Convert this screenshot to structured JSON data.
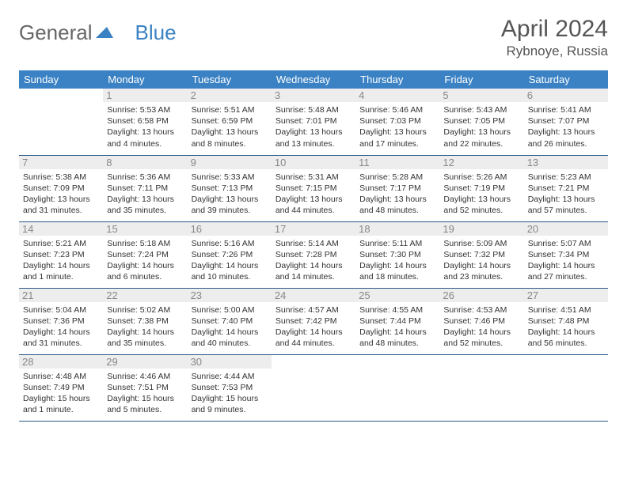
{
  "logo": {
    "general": "General",
    "blue": "Blue"
  },
  "header": {
    "title": "April 2024",
    "location": "Rybnoye, Russia"
  },
  "colors": {
    "header_bg": "#3b82c4",
    "header_text": "#ffffff",
    "border": "#2a5a8a",
    "daynum_bg": "#ededed",
    "daynum_text": "#888888",
    "body_text": "#333333"
  },
  "weekdays": [
    "Sunday",
    "Monday",
    "Tuesday",
    "Wednesday",
    "Thursday",
    "Friday",
    "Saturday"
  ],
  "weeks": [
    [
      {
        "n": "",
        "t": ""
      },
      {
        "n": "1",
        "t": "Sunrise: 5:53 AM\nSunset: 6:58 PM\nDaylight: 13 hours and 4 minutes."
      },
      {
        "n": "2",
        "t": "Sunrise: 5:51 AM\nSunset: 6:59 PM\nDaylight: 13 hours and 8 minutes."
      },
      {
        "n": "3",
        "t": "Sunrise: 5:48 AM\nSunset: 7:01 PM\nDaylight: 13 hours and 13 minutes."
      },
      {
        "n": "4",
        "t": "Sunrise: 5:46 AM\nSunset: 7:03 PM\nDaylight: 13 hours and 17 minutes."
      },
      {
        "n": "5",
        "t": "Sunrise: 5:43 AM\nSunset: 7:05 PM\nDaylight: 13 hours and 22 minutes."
      },
      {
        "n": "6",
        "t": "Sunrise: 5:41 AM\nSunset: 7:07 PM\nDaylight: 13 hours and 26 minutes."
      }
    ],
    [
      {
        "n": "7",
        "t": "Sunrise: 5:38 AM\nSunset: 7:09 PM\nDaylight: 13 hours and 31 minutes."
      },
      {
        "n": "8",
        "t": "Sunrise: 5:36 AM\nSunset: 7:11 PM\nDaylight: 13 hours and 35 minutes."
      },
      {
        "n": "9",
        "t": "Sunrise: 5:33 AM\nSunset: 7:13 PM\nDaylight: 13 hours and 39 minutes."
      },
      {
        "n": "10",
        "t": "Sunrise: 5:31 AM\nSunset: 7:15 PM\nDaylight: 13 hours and 44 minutes."
      },
      {
        "n": "11",
        "t": "Sunrise: 5:28 AM\nSunset: 7:17 PM\nDaylight: 13 hours and 48 minutes."
      },
      {
        "n": "12",
        "t": "Sunrise: 5:26 AM\nSunset: 7:19 PM\nDaylight: 13 hours and 52 minutes."
      },
      {
        "n": "13",
        "t": "Sunrise: 5:23 AM\nSunset: 7:21 PM\nDaylight: 13 hours and 57 minutes."
      }
    ],
    [
      {
        "n": "14",
        "t": "Sunrise: 5:21 AM\nSunset: 7:23 PM\nDaylight: 14 hours and 1 minute."
      },
      {
        "n": "15",
        "t": "Sunrise: 5:18 AM\nSunset: 7:24 PM\nDaylight: 14 hours and 6 minutes."
      },
      {
        "n": "16",
        "t": "Sunrise: 5:16 AM\nSunset: 7:26 PM\nDaylight: 14 hours and 10 minutes."
      },
      {
        "n": "17",
        "t": "Sunrise: 5:14 AM\nSunset: 7:28 PM\nDaylight: 14 hours and 14 minutes."
      },
      {
        "n": "18",
        "t": "Sunrise: 5:11 AM\nSunset: 7:30 PM\nDaylight: 14 hours and 18 minutes."
      },
      {
        "n": "19",
        "t": "Sunrise: 5:09 AM\nSunset: 7:32 PM\nDaylight: 14 hours and 23 minutes."
      },
      {
        "n": "20",
        "t": "Sunrise: 5:07 AM\nSunset: 7:34 PM\nDaylight: 14 hours and 27 minutes."
      }
    ],
    [
      {
        "n": "21",
        "t": "Sunrise: 5:04 AM\nSunset: 7:36 PM\nDaylight: 14 hours and 31 minutes."
      },
      {
        "n": "22",
        "t": "Sunrise: 5:02 AM\nSunset: 7:38 PM\nDaylight: 14 hours and 35 minutes."
      },
      {
        "n": "23",
        "t": "Sunrise: 5:00 AM\nSunset: 7:40 PM\nDaylight: 14 hours and 40 minutes."
      },
      {
        "n": "24",
        "t": "Sunrise: 4:57 AM\nSunset: 7:42 PM\nDaylight: 14 hours and 44 minutes."
      },
      {
        "n": "25",
        "t": "Sunrise: 4:55 AM\nSunset: 7:44 PM\nDaylight: 14 hours and 48 minutes."
      },
      {
        "n": "26",
        "t": "Sunrise: 4:53 AM\nSunset: 7:46 PM\nDaylight: 14 hours and 52 minutes."
      },
      {
        "n": "27",
        "t": "Sunrise: 4:51 AM\nSunset: 7:48 PM\nDaylight: 14 hours and 56 minutes."
      }
    ],
    [
      {
        "n": "28",
        "t": "Sunrise: 4:48 AM\nSunset: 7:49 PM\nDaylight: 15 hours and 1 minute."
      },
      {
        "n": "29",
        "t": "Sunrise: 4:46 AM\nSunset: 7:51 PM\nDaylight: 15 hours and 5 minutes."
      },
      {
        "n": "30",
        "t": "Sunrise: 4:44 AM\nSunset: 7:53 PM\nDaylight: 15 hours and 9 minutes."
      },
      {
        "n": "",
        "t": ""
      },
      {
        "n": "",
        "t": ""
      },
      {
        "n": "",
        "t": ""
      },
      {
        "n": "",
        "t": ""
      }
    ]
  ]
}
